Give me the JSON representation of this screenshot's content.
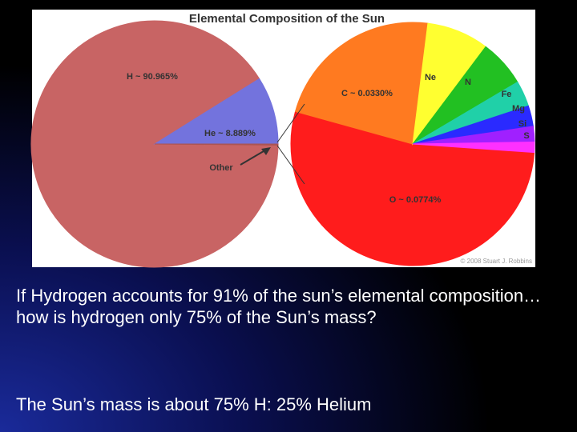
{
  "chart_data": [
    {
      "type": "pie",
      "title": "Elemental Composition of the Sun",
      "categories": [
        "H ~ 90.965%",
        "He ~ 8.889%",
        "Other"
      ],
      "values": [
        90.965,
        8.889,
        0.146
      ],
      "colors": [
        "#c86464",
        "#7373dd",
        "#aa5555"
      ]
    },
    {
      "type": "pie",
      "categories": [
        "O ~ 0.0774%",
        "C ~ 0.0330%",
        "Ne",
        "N",
        "Fe",
        "Mg",
        "Si",
        "S"
      ],
      "values": [
        0.0774,
        0.033,
        0.012,
        0.0091,
        0.005,
        0.004,
        0.003,
        0.002
      ],
      "colors": [
        "#ff1c1c",
        "#ff7a20",
        "#ffff30",
        "#22c022",
        "#20d0a8",
        "#2a2aff",
        "#a020ff",
        "#ff30ff"
      ],
      "credit": "© 2008 Stuart J. Robbins"
    }
  ],
  "slide": {
    "question": "If Hydrogen accounts for 91% of the sun’s elemental composition…how is hydrogen only 75% of the Sun’s mass?",
    "answer": "The Sun’s mass is about 75% H: 25% Helium"
  }
}
